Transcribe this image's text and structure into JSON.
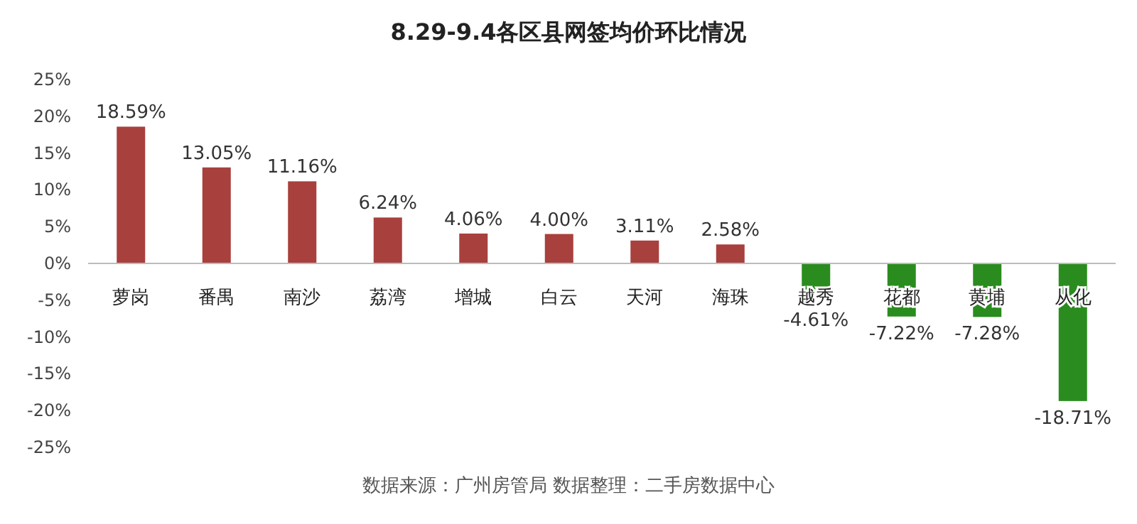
{
  "chart_data": {
    "type": "bar",
    "title": "8.29-9.4各区县网签均价环比情况",
    "categories": [
      "萝岗",
      "番禺",
      "南沙",
      "荔湾",
      "增城",
      "白云",
      "天河",
      "海珠",
      "越秀",
      "花都",
      "黄埔",
      "从化"
    ],
    "values": [
      18.59,
      13.05,
      11.16,
      6.24,
      4.06,
      4.0,
      3.11,
      2.58,
      -4.61,
      -7.22,
      -7.28,
      -18.71
    ],
    "value_labels": [
      "18.59%",
      "13.05%",
      "11.16%",
      "6.24%",
      "4.06%",
      "4.00%",
      "3.11%",
      "2.58%",
      "-4.61%",
      "-7.22%",
      "-7.28%",
      "-18.71%"
    ],
    "colors": [
      "#a8403d",
      "#a8403d",
      "#a8403d",
      "#a8403d",
      "#a8403d",
      "#a8403d",
      "#a8403d",
      "#a8403d",
      "#2a8c1e",
      "#2a8c1e",
      "#2a8c1e",
      "#2a8c1e"
    ],
    "ylim": [
      -25,
      25
    ],
    "yticks": [
      {
        "value": -25,
        "label": "-25%"
      },
      {
        "value": -20,
        "label": "-20%"
      },
      {
        "value": -15,
        "label": "-15%"
      },
      {
        "value": -10,
        "label": "-10%"
      },
      {
        "value": -5,
        "label": "-5%"
      },
      {
        "value": 0,
        "label": "0%"
      },
      {
        "value": 5,
        "label": "5%"
      },
      {
        "value": 10,
        "label": "10%"
      },
      {
        "value": 15,
        "label": "15%"
      },
      {
        "value": 20,
        "label": "20%"
      },
      {
        "value": 25,
        "label": "25%"
      }
    ],
    "grid": false,
    "annotations": [
      "数据来源：广州房管局  数据整理：二手房数据中心"
    ]
  }
}
